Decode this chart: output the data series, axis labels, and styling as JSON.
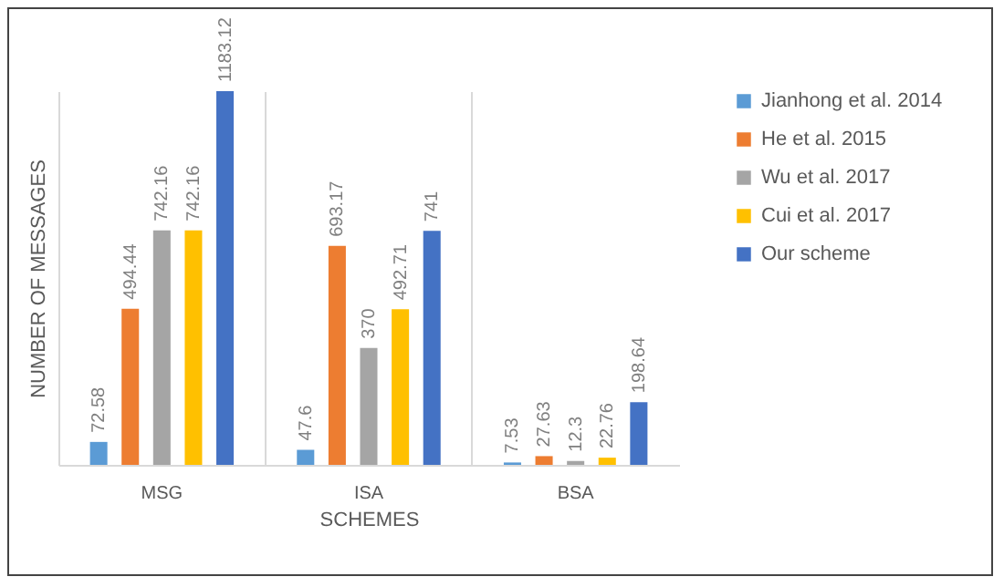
{
  "chart_data": {
    "type": "bar",
    "xlabel": "SCHEMES",
    "ylabel": "NUMBER OF MESSAGES",
    "categories": [
      "MSG",
      "ISA",
      "BSA"
    ],
    "series": [
      {
        "name": "Jianhong et al. 2014",
        "color": "#5b9bd5",
        "values": [
          72.58,
          47.6,
          7.53
        ]
      },
      {
        "name": "He et al. 2015",
        "color": "#ed7d31",
        "values": [
          494.44,
          693.17,
          27.63
        ]
      },
      {
        "name": "Wu et al. 2017",
        "color": "#a5a5a5",
        "values": [
          742.16,
          370,
          12.3
        ]
      },
      {
        "name": "Cui et al. 2017",
        "color": "#ffc000",
        "values": [
          742.16,
          492.71,
          22.76
        ]
      },
      {
        "name": "Our scheme",
        "color": "#4472c4",
        "values": [
          1183.12,
          741,
          198.64
        ]
      }
    ],
    "data_labels": true,
    "grid": "x",
    "legend": "right"
  }
}
